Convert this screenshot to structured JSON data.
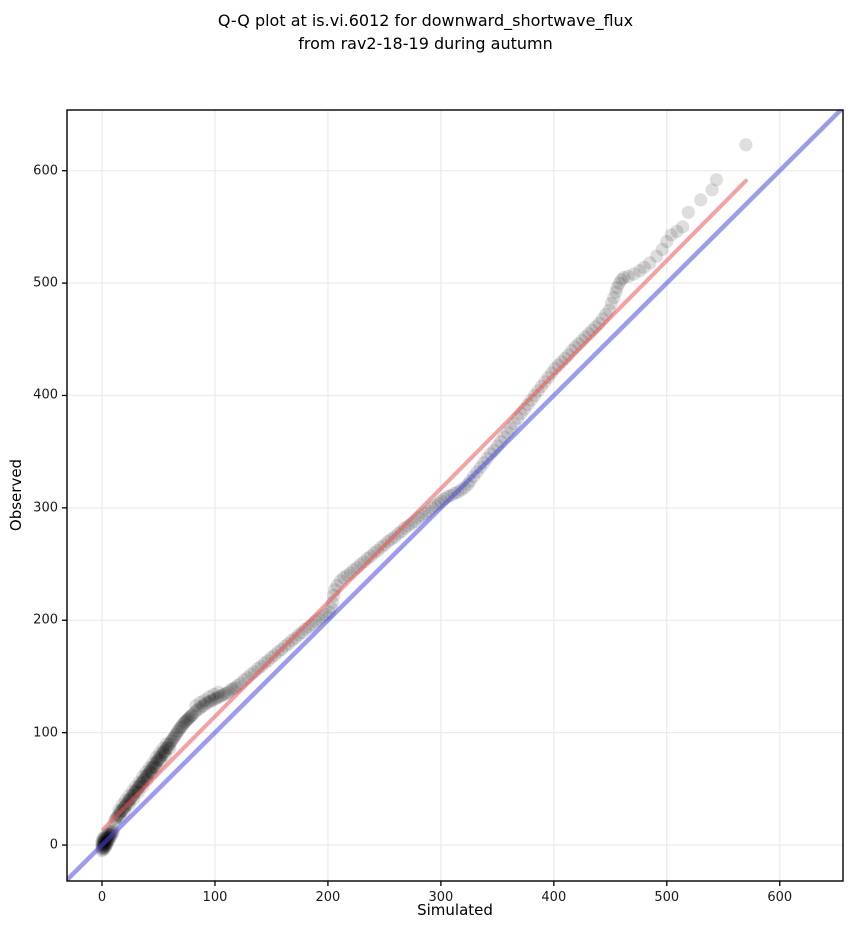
{
  "figure": {
    "title_line1": "Q-Q plot at is.vi.6012 for downward_shortwave_flux",
    "title_line2": "from rav2-18-19 during autumn"
  },
  "chart_data": {
    "type": "scatter",
    "title": "Q-Q plot at is.vi.6012 for downward_shortwave_flux from rav2-18-19 during autumn",
    "xlabel": "Simulated",
    "ylabel": "Observed",
    "xlim": [
      -31,
      656
    ],
    "ylim": [
      -32,
      654
    ],
    "xticks": [
      0,
      100,
      200,
      300,
      400,
      500,
      600
    ],
    "yticks": [
      0,
      100,
      200,
      300,
      400,
      500,
      600
    ],
    "grid": true,
    "grid_color": "#ebebeb",
    "background": "#ffffff",
    "point_style": {
      "color": "#000000",
      "opacity": 0.13,
      "radius": 6.6
    },
    "lines": [
      {
        "name": "fit-line",
        "color": "#ef5350",
        "opacity": 0.55,
        "width": 4,
        "from": [
          1,
          14
        ],
        "to": [
          570,
          591
        ]
      },
      {
        "name": "identity-line",
        "color": "#4848e8",
        "opacity": 0.55,
        "width": 4.5,
        "from": [
          -31,
          -31
        ],
        "to": [
          656,
          656
        ]
      }
    ],
    "points": [
      [
        0,
        -5
      ],
      [
        0,
        -3
      ],
      [
        0,
        -1
      ],
      [
        0,
        1
      ],
      [
        0,
        3
      ],
      [
        1,
        -4
      ],
      [
        1,
        -2
      ],
      [
        1,
        0
      ],
      [
        1,
        2
      ],
      [
        1,
        4
      ],
      [
        1,
        6
      ],
      [
        2,
        -3
      ],
      [
        2,
        -1
      ],
      [
        2,
        1
      ],
      [
        2,
        3
      ],
      [
        2,
        6
      ],
      [
        3,
        -2
      ],
      [
        3,
        0
      ],
      [
        3,
        2
      ],
      [
        3,
        5
      ],
      [
        3,
        8
      ],
      [
        4,
        0
      ],
      [
        4,
        2
      ],
      [
        4,
        4
      ],
      [
        4,
        7
      ],
      [
        5,
        2
      ],
      [
        5,
        4
      ],
      [
        5,
        6
      ],
      [
        5,
        9
      ],
      [
        6,
        4
      ],
      [
        6,
        7
      ],
      [
        6,
        10
      ],
      [
        7,
        6
      ],
      [
        7,
        9
      ],
      [
        7,
        12
      ],
      [
        8,
        8
      ],
      [
        8,
        11
      ],
      [
        9,
        10
      ],
      [
        9,
        13
      ],
      [
        10,
        12
      ],
      [
        11,
        21
      ],
      [
        12,
        23
      ],
      [
        13,
        24
      ],
      [
        14,
        26
      ],
      [
        15,
        27
      ],
      [
        16,
        29
      ],
      [
        17,
        30
      ],
      [
        18,
        31
      ],
      [
        19,
        33
      ],
      [
        20,
        34
      ],
      [
        21,
        35
      ],
      [
        22,
        37
      ],
      [
        23,
        38
      ],
      [
        24,
        40
      ],
      [
        25,
        41
      ],
      [
        26,
        42
      ],
      [
        27,
        44
      ],
      [
        28,
        45
      ],
      [
        29,
        47
      ],
      [
        30,
        48
      ],
      [
        31,
        49
      ],
      [
        32,
        51
      ],
      [
        33,
        52
      ],
      [
        34,
        54
      ],
      [
        35,
        55
      ],
      [
        36,
        56
      ],
      [
        37,
        58
      ],
      [
        38,
        59
      ],
      [
        39,
        61
      ],
      [
        40,
        62
      ],
      [
        41,
        63
      ],
      [
        42,
        65
      ],
      [
        43,
        66
      ],
      [
        44,
        68
      ],
      [
        45,
        69
      ],
      [
        46,
        70
      ],
      [
        47,
        72
      ],
      [
        48,
        73
      ],
      [
        49,
        75
      ],
      [
        50,
        76
      ],
      [
        51,
        77
      ],
      [
        52,
        79
      ],
      [
        53,
        80
      ],
      [
        54,
        82
      ],
      [
        55,
        83
      ],
      [
        56,
        84
      ],
      [
        57,
        86
      ],
      [
        58,
        87
      ],
      [
        59,
        89
      ],
      [
        60,
        90
      ],
      [
        15,
        31
      ],
      [
        18,
        36
      ],
      [
        21,
        40
      ],
      [
        24,
        44
      ],
      [
        27,
        48
      ],
      [
        30,
        52
      ],
      [
        33,
        56
      ],
      [
        36,
        61
      ],
      [
        39,
        65
      ],
      [
        42,
        69
      ],
      [
        45,
        73
      ],
      [
        48,
        78
      ],
      [
        51,
        82
      ],
      [
        54,
        86
      ],
      [
        57,
        90
      ],
      [
        16,
        25
      ],
      [
        20,
        30
      ],
      [
        24,
        36
      ],
      [
        28,
        41
      ],
      [
        32,
        47
      ],
      [
        36,
        52
      ],
      [
        40,
        58
      ],
      [
        44,
        64
      ],
      [
        48,
        69
      ],
      [
        52,
        75
      ],
      [
        56,
        80
      ],
      [
        60,
        86
      ],
      [
        61,
        92
      ],
      [
        62,
        93
      ],
      [
        63,
        95
      ],
      [
        64,
        96
      ],
      [
        65,
        98
      ],
      [
        66,
        99
      ],
      [
        67,
        101
      ],
      [
        68,
        102
      ],
      [
        69,
        104
      ],
      [
        70,
        105
      ],
      [
        71,
        106
      ],
      [
        72,
        108
      ],
      [
        73,
        109
      ],
      [
        74,
        110
      ],
      [
        75,
        111
      ],
      [
        76,
        112
      ],
      [
        77,
        113
      ],
      [
        78,
        114
      ],
      [
        79,
        115
      ],
      [
        80,
        116
      ],
      [
        82,
        118
      ],
      [
        84,
        120
      ],
      [
        86,
        121
      ],
      [
        88,
        123
      ],
      [
        90,
        124
      ],
      [
        92,
        126
      ],
      [
        94,
        127
      ],
      [
        96,
        128
      ],
      [
        98,
        129
      ],
      [
        100,
        130
      ],
      [
        102,
        131
      ],
      [
        104,
        132
      ],
      [
        106,
        133
      ],
      [
        108,
        134
      ],
      [
        110,
        135
      ],
      [
        112,
        136
      ],
      [
        114,
        138
      ],
      [
        116,
        139
      ],
      [
        118,
        140
      ],
      [
        83,
        124
      ],
      [
        87,
        127
      ],
      [
        91,
        129
      ],
      [
        95,
        132
      ],
      [
        99,
        134
      ],
      [
        103,
        136
      ],
      [
        120,
        142
      ],
      [
        123,
        144
      ],
      [
        126,
        147
      ],
      [
        129,
        149
      ],
      [
        132,
        152
      ],
      [
        135,
        154
      ],
      [
        138,
        157
      ],
      [
        141,
        159
      ],
      [
        144,
        162
      ],
      [
        147,
        164
      ],
      [
        150,
        167
      ],
      [
        153,
        169
      ],
      [
        156,
        172
      ],
      [
        159,
        174
      ],
      [
        162,
        177
      ],
      [
        165,
        179
      ],
      [
        168,
        182
      ],
      [
        171,
        184
      ],
      [
        174,
        187
      ],
      [
        177,
        189
      ],
      [
        180,
        192
      ],
      [
        183,
        194
      ],
      [
        186,
        196
      ],
      [
        189,
        199
      ],
      [
        192,
        201
      ],
      [
        195,
        203
      ],
      [
        198,
        205
      ],
      [
        201,
        207
      ],
      [
        203,
        211
      ],
      [
        204,
        216
      ],
      [
        205,
        222
      ],
      [
        206,
        227
      ],
      [
        208,
        231
      ],
      [
        211,
        235
      ],
      [
        214,
        238
      ],
      [
        217,
        240
      ],
      [
        220,
        242
      ],
      [
        223,
        245
      ],
      [
        226,
        247
      ],
      [
        229,
        250
      ],
      [
        232,
        252
      ],
      [
        235,
        255
      ],
      [
        238,
        257
      ],
      [
        241,
        260
      ],
      [
        244,
        262
      ],
      [
        247,
        265
      ],
      [
        250,
        267
      ],
      [
        253,
        270
      ],
      [
        256,
        272
      ],
      [
        259,
        274
      ],
      [
        262,
        277
      ],
      [
        265,
        279
      ],
      [
        268,
        282
      ],
      [
        271,
        284
      ],
      [
        274,
        286
      ],
      [
        277,
        288
      ],
      [
        280,
        291
      ],
      [
        283,
        293
      ],
      [
        286,
        295
      ],
      [
        289,
        297
      ],
      [
        292,
        300
      ],
      [
        295,
        302
      ],
      [
        298,
        304
      ],
      [
        300,
        306
      ],
      [
        303,
        308
      ],
      [
        306,
        310
      ],
      [
        309,
        311
      ],
      [
        312,
        313
      ],
      [
        315,
        314
      ],
      [
        318,
        316
      ],
      [
        321,
        318
      ],
      [
        324,
        321
      ],
      [
        326,
        324
      ],
      [
        329,
        328
      ],
      [
        332,
        332
      ],
      [
        335,
        336
      ],
      [
        338,
        340
      ],
      [
        341,
        344
      ],
      [
        344,
        348
      ],
      [
        347,
        351
      ],
      [
        350,
        355
      ],
      [
        353,
        359
      ],
      [
        356,
        363
      ],
      [
        359,
        367
      ],
      [
        362,
        371
      ],
      [
        365,
        375
      ],
      [
        368,
        380
      ],
      [
        371,
        384
      ],
      [
        374,
        388
      ],
      [
        377,
        392
      ],
      [
        380,
        396
      ],
      [
        383,
        400
      ],
      [
        386,
        404
      ],
      [
        389,
        408
      ],
      [
        392,
        412
      ],
      [
        395,
        416
      ],
      [
        398,
        420
      ],
      [
        401,
        424
      ],
      [
        404,
        427
      ],
      [
        407,
        430
      ],
      [
        410,
        433
      ],
      [
        413,
        436
      ],
      [
        416,
        440
      ],
      [
        419,
        443
      ],
      [
        422,
        446
      ],
      [
        425,
        449
      ],
      [
        428,
        452
      ],
      [
        431,
        455
      ],
      [
        434,
        458
      ],
      [
        437,
        461
      ],
      [
        440,
        464
      ],
      [
        443,
        468
      ],
      [
        446,
        472
      ],
      [
        449,
        476
      ],
      [
        451,
        482
      ],
      [
        453,
        487
      ],
      [
        455,
        492
      ],
      [
        456,
        496
      ],
      [
        458,
        500
      ],
      [
        460,
        503
      ],
      [
        462,
        505
      ],
      [
        466,
        506
      ],
      [
        471,
        508
      ],
      [
        476,
        511
      ],
      [
        480,
        514
      ],
      [
        485,
        518
      ],
      [
        491,
        524
      ],
      [
        496,
        530
      ],
      [
        500,
        537
      ],
      [
        504,
        543
      ],
      [
        509,
        546
      ],
      [
        514,
        550
      ],
      [
        519,
        563
      ],
      [
        530,
        574
      ],
      [
        540,
        583
      ],
      [
        544,
        592
      ],
      [
        570,
        623
      ]
    ]
  }
}
